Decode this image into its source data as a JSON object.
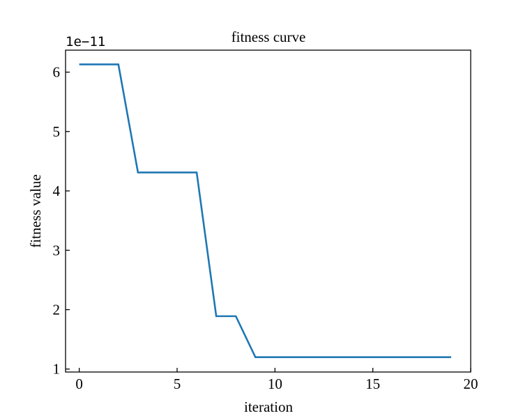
{
  "chart_data": {
    "type": "line",
    "title": "fitness curve",
    "xlabel": "iteration",
    "ylabel": "fitness value",
    "y_offset_label": "1e−11",
    "xlim": [
      -0.7,
      20
    ],
    "ylim": [
      0.95,
      6.37
    ],
    "xticks": [
      0,
      5,
      10,
      15,
      20
    ],
    "yticks": [
      1,
      2,
      3,
      4,
      5,
      6
    ],
    "grid": false,
    "line_color": "#1f77b4",
    "series": [
      {
        "x": [
          0,
          1,
          2,
          3,
          4,
          5,
          6,
          7,
          8,
          9,
          10,
          11,
          12,
          13,
          14,
          15,
          16,
          17,
          18,
          19
        ],
        "values": [
          6.13,
          6.13,
          6.13,
          4.31,
          4.31,
          4.31,
          4.31,
          1.89,
          1.89,
          1.2,
          1.2,
          1.2,
          1.2,
          1.2,
          1.2,
          1.2,
          1.2,
          1.2,
          1.2,
          1.2
        ]
      }
    ]
  }
}
